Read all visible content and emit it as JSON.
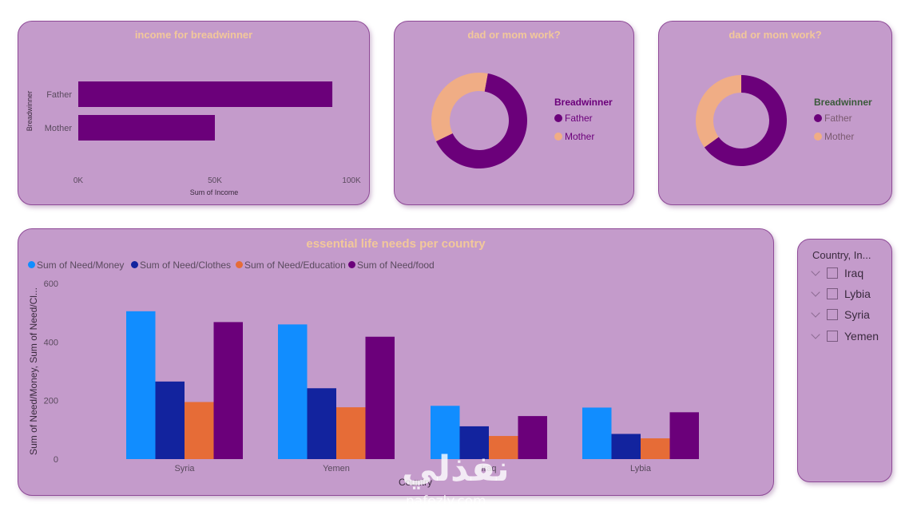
{
  "colors": {
    "card_bg": "#c49bcb",
    "title": "#f2c89a",
    "father": "#6b007a",
    "mother": "#f0ad85",
    "money": "#118dff",
    "clothes": "#12239e",
    "education": "#e66c37",
    "food": "#6b007a"
  },
  "income_chart": {
    "title": "income for breadwinner",
    "ylabel": "Breadwinner",
    "xlabel": "Sum of Income",
    "ticks": [
      "0K",
      "50K",
      "100K"
    ],
    "categories": [
      "Father",
      "Mother"
    ]
  },
  "donut_left": {
    "title": "dad or mom work?",
    "legend_title": "Breadwinner",
    "legend": [
      "Father",
      "Mother"
    ]
  },
  "donut_right": {
    "title": "dad or mom work?",
    "legend_title": "Breadwinner",
    "legend": [
      "Father",
      "Mother"
    ]
  },
  "needs_chart": {
    "title": "essential life needs per country",
    "ylabel": "Sum of Need/Money, Sum of Need/Cl...",
    "xlabel": "Country",
    "yticks": [
      "0",
      "200",
      "400",
      "600"
    ],
    "legend": [
      "Sum of Need/Money",
      "Sum of Need/Clothes",
      "Sum of Need/Education",
      "Sum of Need/food"
    ],
    "categories": [
      "Syria",
      "Yemen",
      "Iraq",
      "Lybia"
    ]
  },
  "slicer": {
    "title": "Country, In...",
    "items": [
      "Iraq",
      "Lybia",
      "Syria",
      "Yemen"
    ]
  },
  "watermark": {
    "arabic": "نفذلي",
    "latin": "nafezly.com"
  },
  "chart_data": [
    {
      "type": "bar",
      "orientation": "horizontal",
      "title": "income for breadwinner",
      "xlabel": "Sum of Income",
      "ylabel": "Breadwinner",
      "categories": [
        "Father",
        "Mother"
      ],
      "values": [
        93000,
        50000
      ],
      "xlim": [
        0,
        100000
      ]
    },
    {
      "type": "pie",
      "title": "dad or mom work?",
      "legend_title": "Breadwinner",
      "categories": [
        "Father",
        "Mother"
      ],
      "values": [
        65,
        35
      ]
    },
    {
      "type": "pie",
      "title": "dad or mom work?",
      "legend_title": "Breadwinner",
      "categories": [
        "Father",
        "Mother"
      ],
      "values": [
        65,
        35
      ]
    },
    {
      "type": "bar",
      "title": "essential life needs per country",
      "xlabel": "Country",
      "ylabel": "Sum of Need/Money, Sum of Need/Cl...",
      "categories": [
        "Syria",
        "Yemen",
        "Iraq",
        "Lybia"
      ],
      "series": [
        {
          "name": "Sum of Need/Money",
          "values": [
            505,
            460,
            182,
            176
          ]
        },
        {
          "name": "Sum of Need/Clothes",
          "values": [
            265,
            242,
            112,
            86
          ]
        },
        {
          "name": "Sum of Need/Education",
          "values": [
            195,
            177,
            79,
            71
          ]
        },
        {
          "name": "Sum of Need/food",
          "values": [
            468,
            418,
            147,
            160
          ]
        }
      ],
      "ylim": [
        0,
        600
      ],
      "legend_position": "top-left"
    }
  ]
}
